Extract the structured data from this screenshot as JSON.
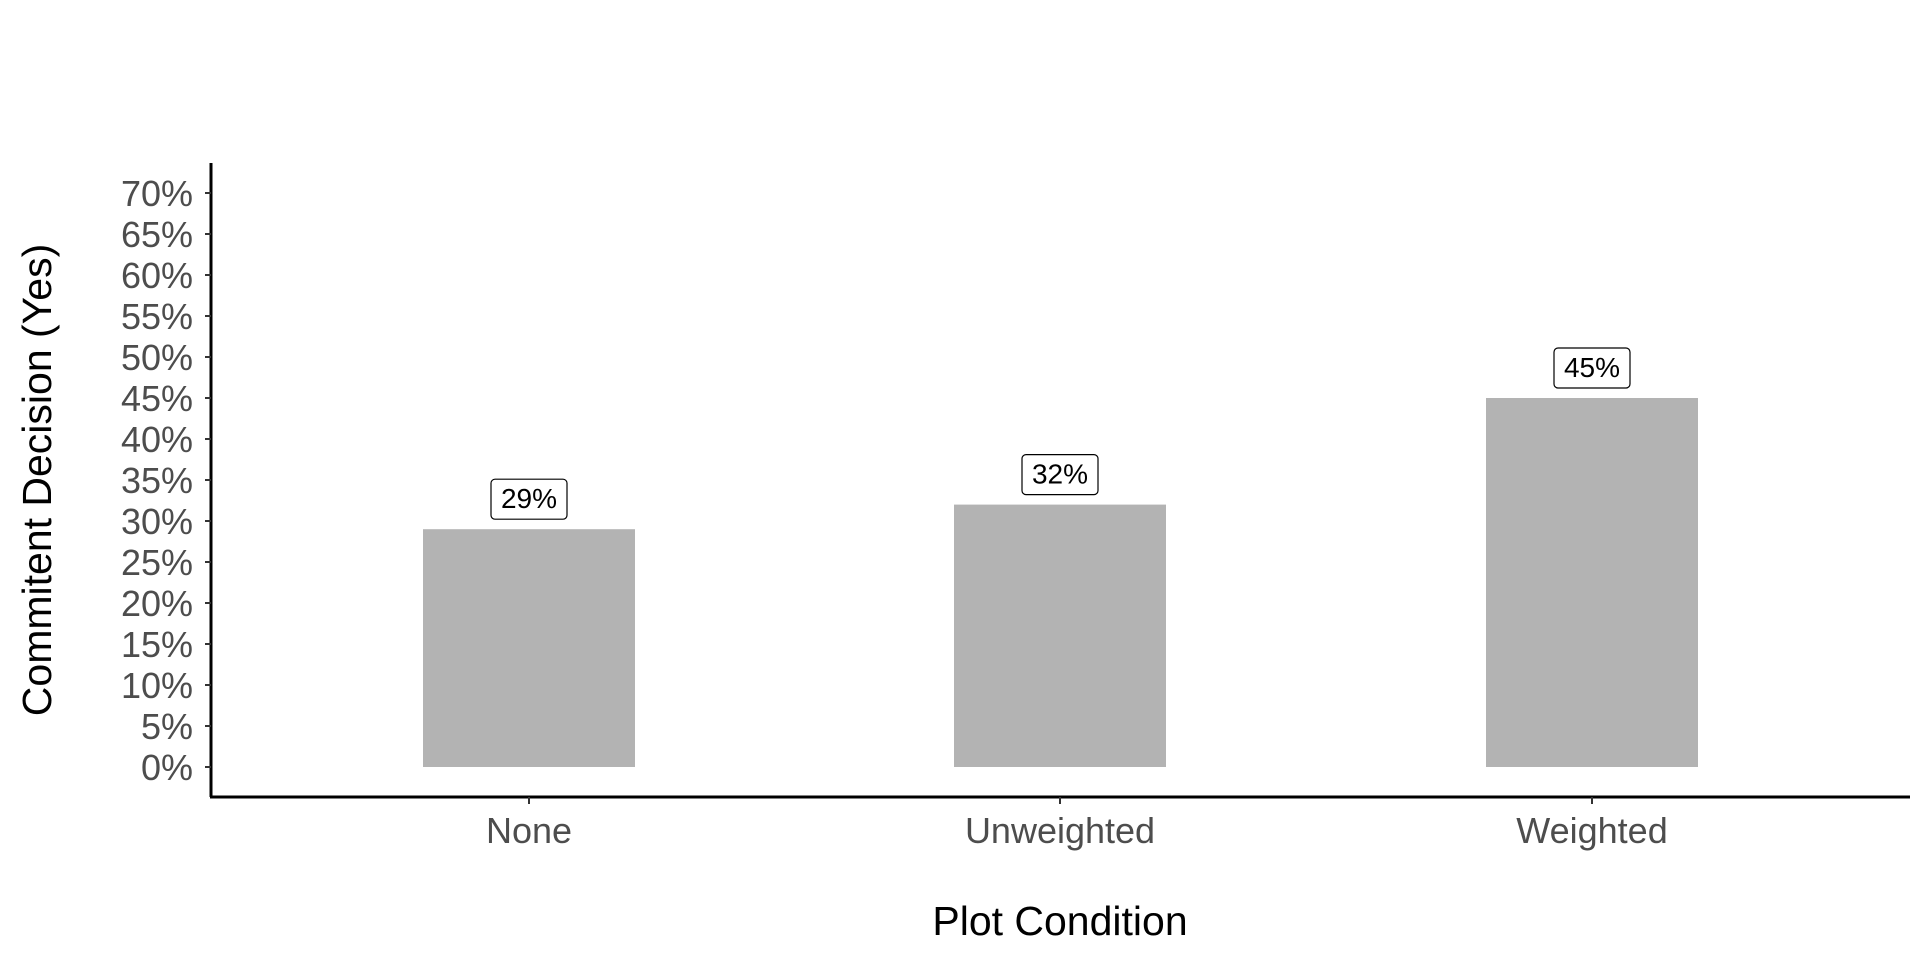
{
  "chart_data": {
    "type": "bar",
    "title": "",
    "xlabel": "Plot Condition",
    "ylabel": "Commitent Decision (Yes)",
    "categories": [
      "None",
      "Unweighted",
      "Weighted"
    ],
    "values": [
      29,
      32,
      45
    ],
    "value_unit": "percent",
    "data_labels": [
      "29%",
      "32%",
      "45%"
    ],
    "ylim": [
      0,
      70
    ],
    "y_ticks": [
      0,
      5,
      10,
      15,
      20,
      25,
      30,
      35,
      40,
      45,
      50,
      55,
      60,
      65,
      70
    ],
    "y_tick_labels": [
      "0%",
      "5%",
      "10%",
      "15%",
      "20%",
      "25%",
      "30%",
      "35%",
      "40%",
      "45%",
      "50%",
      "55%",
      "60%",
      "65%",
      "70%"
    ],
    "grid": false,
    "legend": "none",
    "colors": {
      "bar": "#b3b3b3",
      "axis": "#000000",
      "tick_text": "#4d4d4d",
      "label_box_border": "#000000",
      "label_box_fill": "#ffffff"
    }
  }
}
